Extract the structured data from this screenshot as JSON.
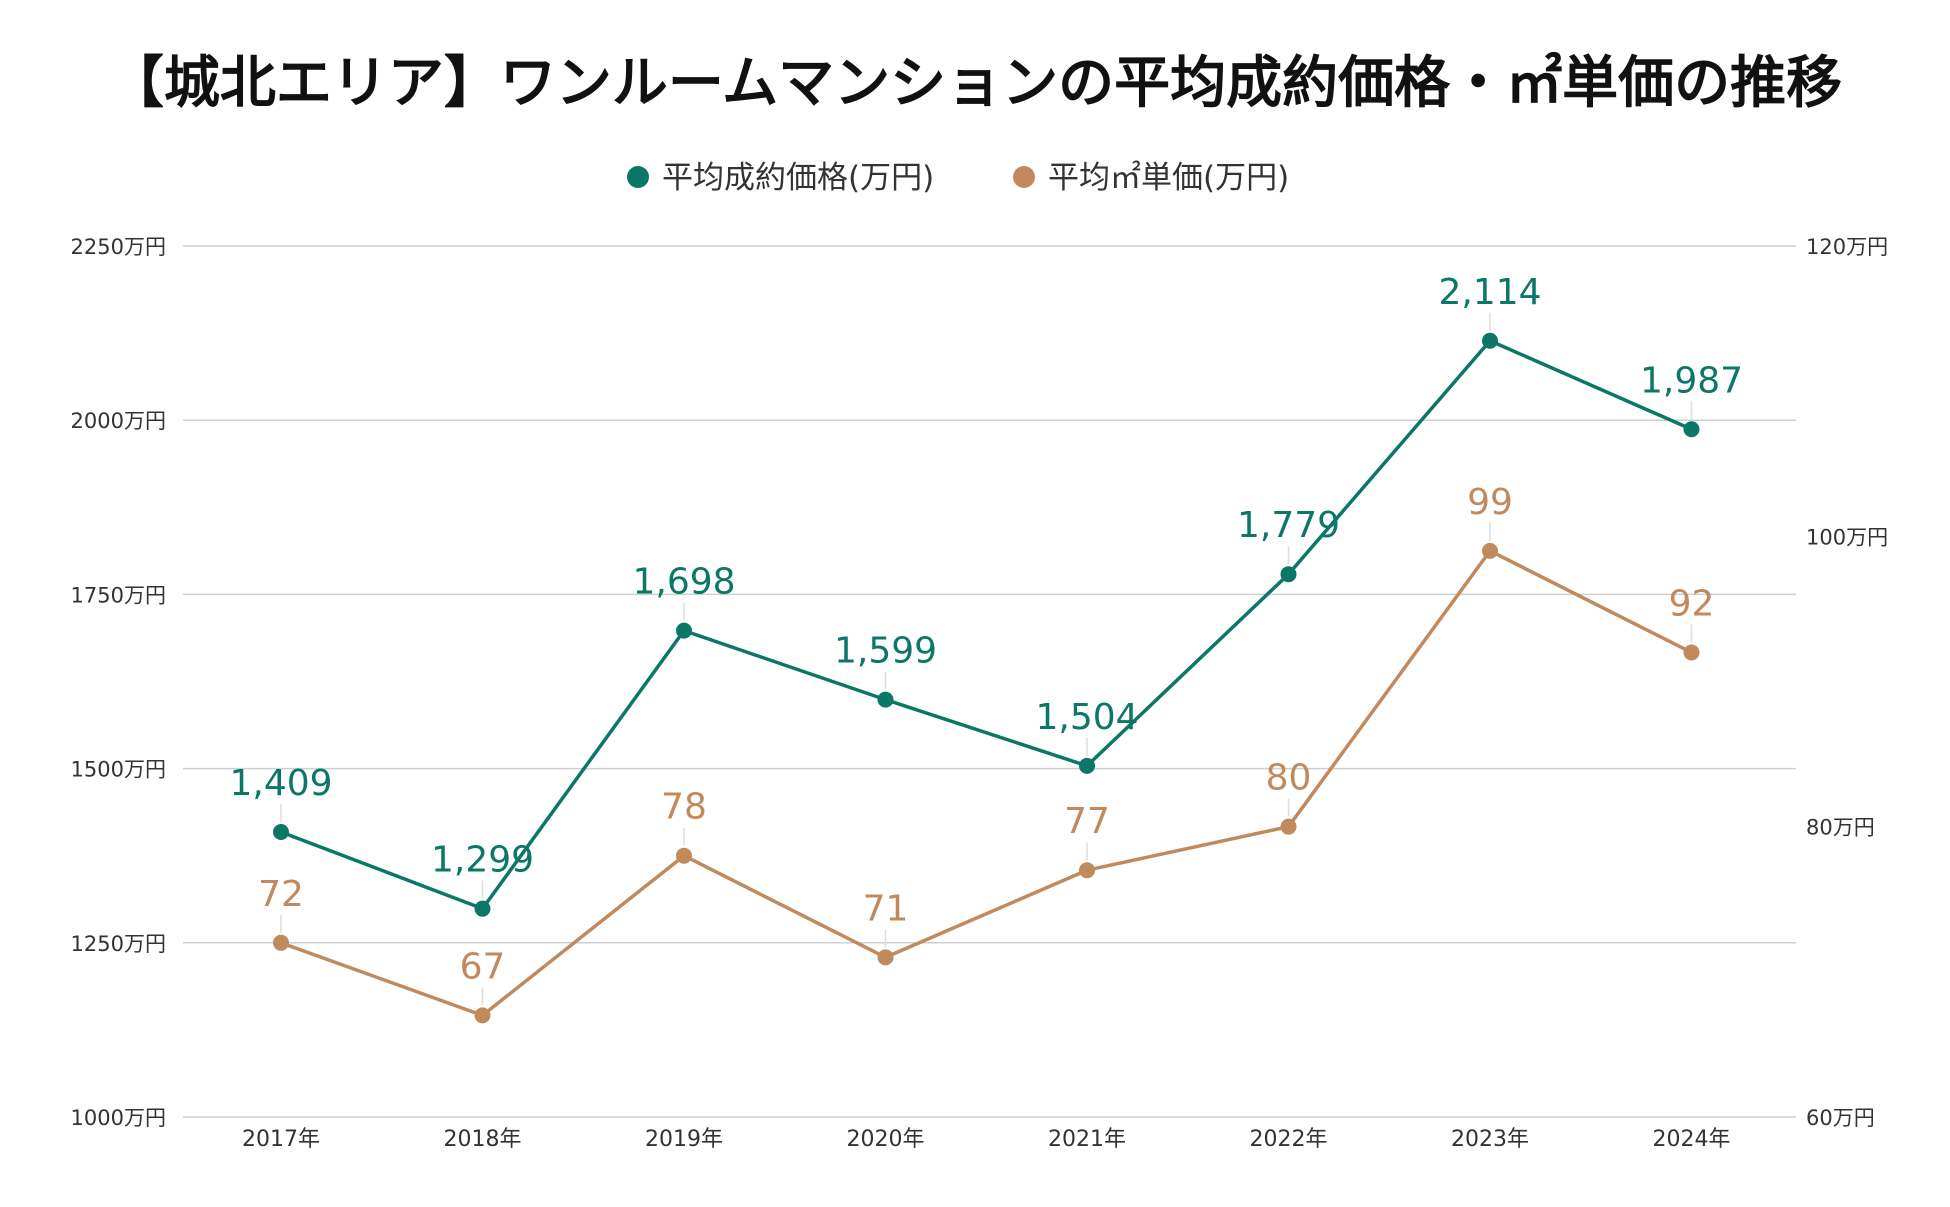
{
  "chart_data": {
    "type": "line",
    "title": "【城北エリア】ワンルームマンションの平均成約価格・㎡単価の推移",
    "categories": [
      "2017年",
      "2018年",
      "2019年",
      "2020年",
      "2021年",
      "2022年",
      "2023年",
      "2024年"
    ],
    "series": [
      {
        "name": "平均成約価格(万円)",
        "axis": "left",
        "color": "#0b7766",
        "values": [
          1409,
          1299,
          1698,
          1599,
          1504,
          1779,
          2114,
          1987
        ],
        "labels": [
          "1,409",
          "1,299",
          "1,698",
          "1,599",
          "1,504",
          "1,779",
          "2,114",
          "1,987"
        ]
      },
      {
        "name": "平均㎡単価(万円)",
        "axis": "right",
        "color": "#c08a5d",
        "values": [
          72,
          67,
          78,
          71,
          77,
          80,
          99,
          92
        ],
        "labels": [
          "72",
          "67",
          "78",
          "71",
          "77",
          "80",
          "99",
          "92"
        ]
      }
    ],
    "y_left": {
      "range": [
        1000,
        2250
      ],
      "ticks": [
        1000,
        1250,
        1500,
        1750,
        2000,
        2250
      ],
      "tick_labels": [
        "1000万円",
        "1250万円",
        "1500万円",
        "1750万円",
        "2000万円",
        "2250万円"
      ]
    },
    "y_right": {
      "range": [
        60,
        120
      ],
      "ticks": [
        60,
        80,
        100,
        120
      ],
      "tick_labels": [
        "60万円",
        "80万円",
        "100万円",
        "120万円"
      ]
    },
    "grid": true,
    "legend": "top-center"
  }
}
